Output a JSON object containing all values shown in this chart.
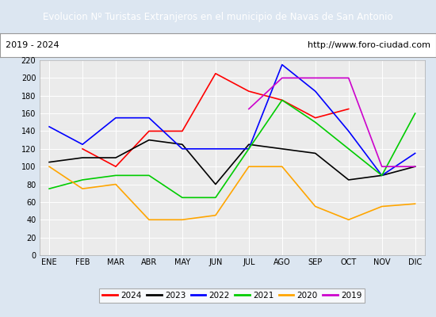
{
  "title": "Evolucion Nº Turistas Extranjeros en el municipio de Navas de San Antonio",
  "subtitle_left": "2019 - 2024",
  "subtitle_right": "http://www.foro-ciudad.com",
  "title_bg_color": "#4d7ebf",
  "title_text_color": "#ffffff",
  "subtitle_bg_color": "#ffffff",
  "plot_bg_color": "#ebebeb",
  "outer_bg_color": "#dce6f1",
  "months": [
    "ENE",
    "FEB",
    "MAR",
    "ABR",
    "MAY",
    "JUN",
    "JUL",
    "AGO",
    "SEP",
    "OCT",
    "NOV",
    "DIC"
  ],
  "ylim": [
    0,
    220
  ],
  "yticks": [
    0,
    20,
    40,
    60,
    80,
    100,
    120,
    140,
    160,
    180,
    200,
    220
  ],
  "series": {
    "2024": {
      "color": "#ff0000",
      "values": [
        null,
        120,
        100,
        140,
        140,
        205,
        185,
        175,
        155,
        165,
        null,
        null
      ]
    },
    "2023": {
      "color": "#000000",
      "values": [
        105,
        110,
        110,
        130,
        125,
        80,
        125,
        120,
        115,
        85,
        90,
        100
      ]
    },
    "2022": {
      "color": "#0000ff",
      "values": [
        145,
        125,
        155,
        155,
        120,
        120,
        120,
        215,
        185,
        140,
        90,
        115
      ]
    },
    "2021": {
      "color": "#00cc00",
      "values": [
        75,
        85,
        90,
        90,
        65,
        65,
        120,
        175,
        150,
        120,
        90,
        160
      ]
    },
    "2020": {
      "color": "#ffa500",
      "values": [
        100,
        75,
        80,
        40,
        40,
        45,
        100,
        100,
        55,
        40,
        55,
        58
      ]
    },
    "2019": {
      "color": "#cc00cc",
      "values": [
        null,
        null,
        null,
        null,
        null,
        null,
        165,
        200,
        200,
        200,
        100,
        100
      ]
    }
  },
  "legend_order": [
    "2024",
    "2023",
    "2022",
    "2021",
    "2020",
    "2019"
  ]
}
